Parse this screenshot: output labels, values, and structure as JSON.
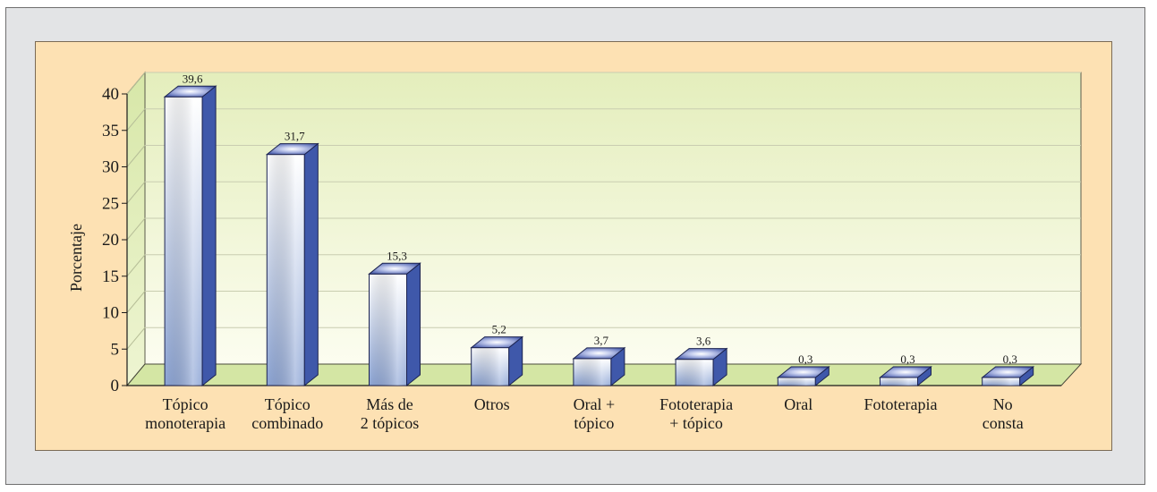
{
  "chart_data": {
    "type": "bar",
    "ylabel": "Porcentaje",
    "xlabel": "",
    "ylim": [
      0,
      40
    ],
    "yticks": [
      0,
      5,
      10,
      15,
      20,
      25,
      30,
      35,
      40
    ],
    "grid": true,
    "categories": [
      [
        "Tópico",
        "monoterapia"
      ],
      [
        "Tópico",
        "combinado"
      ],
      [
        "Más de",
        "2 tópicos"
      ],
      [
        "Otros"
      ],
      [
        "Oral +",
        "tópico"
      ],
      [
        "Fototerapia",
        "+ tópico"
      ],
      [
        "Oral"
      ],
      [
        "Fototerapia"
      ],
      [
        "No",
        "consta"
      ]
    ],
    "values": [
      39.6,
      31.7,
      15.3,
      5.2,
      3.7,
      3.6,
      0.3,
      0.3,
      0.3
    ],
    "value_labels": [
      "39,6",
      "31,7",
      "15,3",
      "5,2",
      "3,7",
      "3,6",
      "0,3",
      "0,3",
      "0,3"
    ],
    "colors": {
      "bar_front_light": "#ffffff",
      "bar_front_dark": "#8ea6d6",
      "bar_side": "#3d56a8",
      "bar_top": "#5a6db8",
      "wall_top": "#e6efc0",
      "wall_bottom": "#fbfcee",
      "floor": "#d6e8a8"
    }
  }
}
